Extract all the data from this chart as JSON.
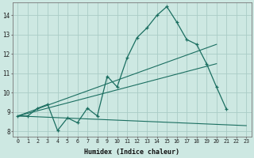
{
  "xlabel": "Humidex (Indice chaleur)",
  "bg_color": "#cde8e2",
  "grid_color": "#aaccc6",
  "line_color": "#1a6e60",
  "xlim": [
    -0.5,
    23.5
  ],
  "ylim": [
    7.75,
    14.65
  ],
  "xticks": [
    0,
    1,
    2,
    3,
    4,
    5,
    6,
    7,
    8,
    9,
    10,
    11,
    12,
    13,
    14,
    15,
    16,
    17,
    18,
    19,
    20,
    21,
    22,
    23
  ],
  "yticks": [
    8,
    9,
    10,
    11,
    12,
    13,
    14
  ],
  "line_main": {
    "x": [
      0,
      1,
      2,
      3,
      4,
      5,
      6,
      7,
      8,
      9,
      10,
      11,
      12,
      13,
      14,
      15,
      16,
      17,
      18,
      19,
      20,
      21
    ],
    "y": [
      8.8,
      8.8,
      9.2,
      9.4,
      8.05,
      8.7,
      8.45,
      9.2,
      8.8,
      10.85,
      10.3,
      11.8,
      12.85,
      13.35,
      14.0,
      14.45,
      13.65,
      12.75,
      12.5,
      11.5,
      10.3,
      9.15
    ]
  },
  "line_flat": {
    "x": [
      0,
      23
    ],
    "y": [
      8.8,
      8.3
    ]
  },
  "line_diag1": {
    "x": [
      0,
      20
    ],
    "y": [
      8.8,
      11.5
    ]
  },
  "line_diag2": {
    "x": [
      0,
      20
    ],
    "y": [
      8.8,
      12.5
    ]
  },
  "tri_fill": {
    "x": [
      0,
      20,
      23,
      0
    ],
    "y": [
      8.8,
      12.5,
      8.3,
      8.8
    ]
  }
}
